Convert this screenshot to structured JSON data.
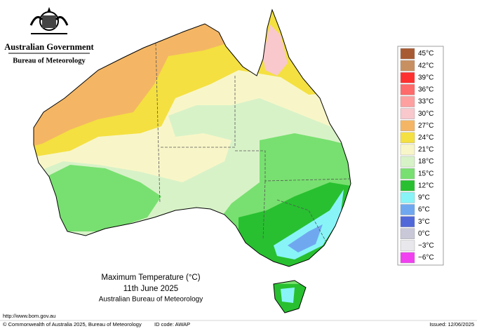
{
  "header": {
    "agency": "Australian Government",
    "bureau": "Bureau of Meteorology"
  },
  "map": {
    "title": "Maximum Temperature (°C)",
    "date": "11th June 2025",
    "source": "Australian Bureau of Meteorology"
  },
  "legend": [
    {
      "label": "45°C",
      "color": "#a85a32"
    },
    {
      "label": "42°C",
      "color": "#c89060"
    },
    {
      "label": "39°C",
      "color": "#ff3030"
    },
    {
      "label": "36°C",
      "color": "#ff6a6a"
    },
    {
      "label": "33°C",
      "color": "#ffa0a0"
    },
    {
      "label": "30°C",
      "color": "#f8c8cc"
    },
    {
      "label": "27°C",
      "color": "#f4b664"
    },
    {
      "label": "24°C",
      "color": "#f4e040"
    },
    {
      "label": "21°C",
      "color": "#f8f6c8"
    },
    {
      "label": "18°C",
      "color": "#d8f2c8"
    },
    {
      "label": "15°C",
      "color": "#78e070"
    },
    {
      "label": "12°C",
      "color": "#28c030"
    },
    {
      "label": "9°C",
      "color": "#88f4f8"
    },
    {
      "label": "6°C",
      "color": "#70a8f0"
    },
    {
      "label": "3°C",
      "color": "#5068d8"
    },
    {
      "label": "0°C",
      "color": "#c8c8d8"
    },
    {
      "label": "−3°C",
      "color": "#e8e8ec"
    },
    {
      "label": "−6°C",
      "color": "#f040f0"
    }
  ],
  "footer": {
    "url": "http://www.bom.gov.au",
    "copyright": "© Commonwealth of Australia 2025, Bureau of Meteorology",
    "id_code": "ID code: AWAP",
    "issued": "Issued: 12/06/2025"
  }
}
